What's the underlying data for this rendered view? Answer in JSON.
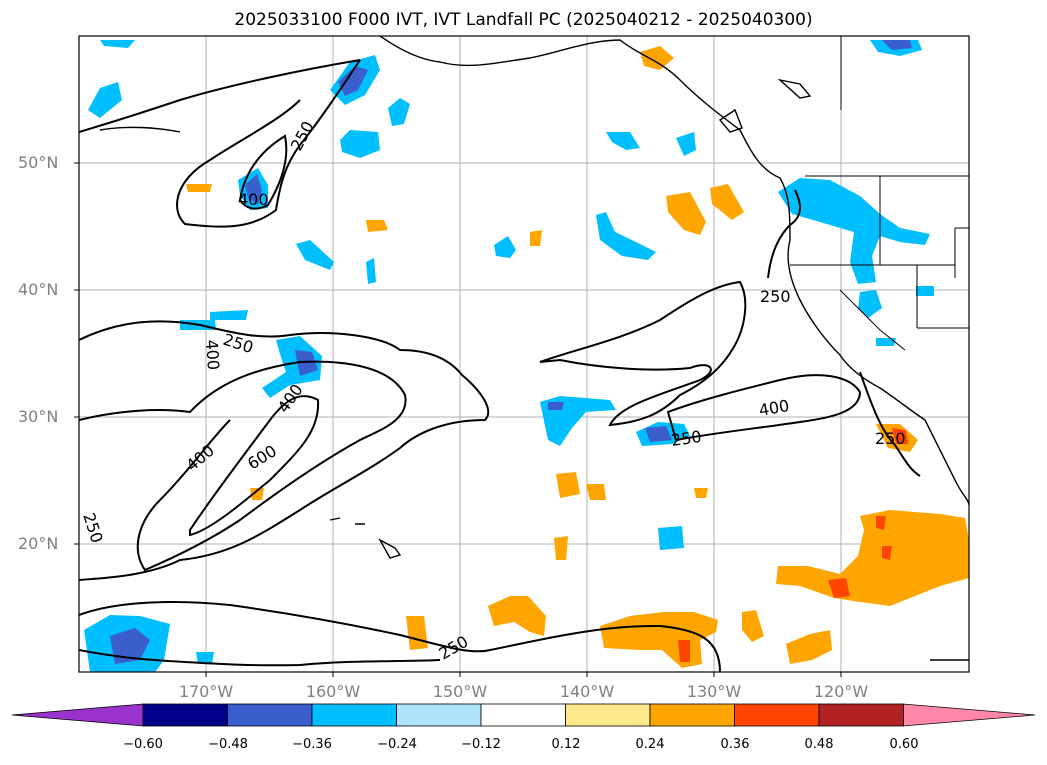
{
  "title": "2025033100 F000 IVT, IVT Landfall PC (2025040212 - 2025040300)",
  "map": {
    "lat_labels": [
      "50°N",
      "40°N",
      "30°N",
      "20°N"
    ],
    "lon_labels": [
      "170°W",
      "160°W",
      "150°W",
      "140°W",
      "130°W",
      "120°W"
    ],
    "contour_labels": [
      "250",
      "400",
      "250",
      "400",
      "400",
      "400",
      "600",
      "250",
      "250",
      "400",
      "250",
      "250",
      "250"
    ]
  },
  "colorbar": {
    "ticks": [
      "−0.60",
      "−0.48",
      "−0.36",
      "−0.24",
      "−0.12",
      "0.12",
      "0.24",
      "0.36",
      "0.48",
      "0.60"
    ],
    "colors": [
      "#9933cc",
      "#00008b",
      "#3a5fcd",
      "#00bfff",
      "#aee3fb",
      "#ffffff",
      "#fde98b",
      "#ffa500",
      "#ff4500",
      "#b22222",
      "#ff88aa"
    ]
  }
}
